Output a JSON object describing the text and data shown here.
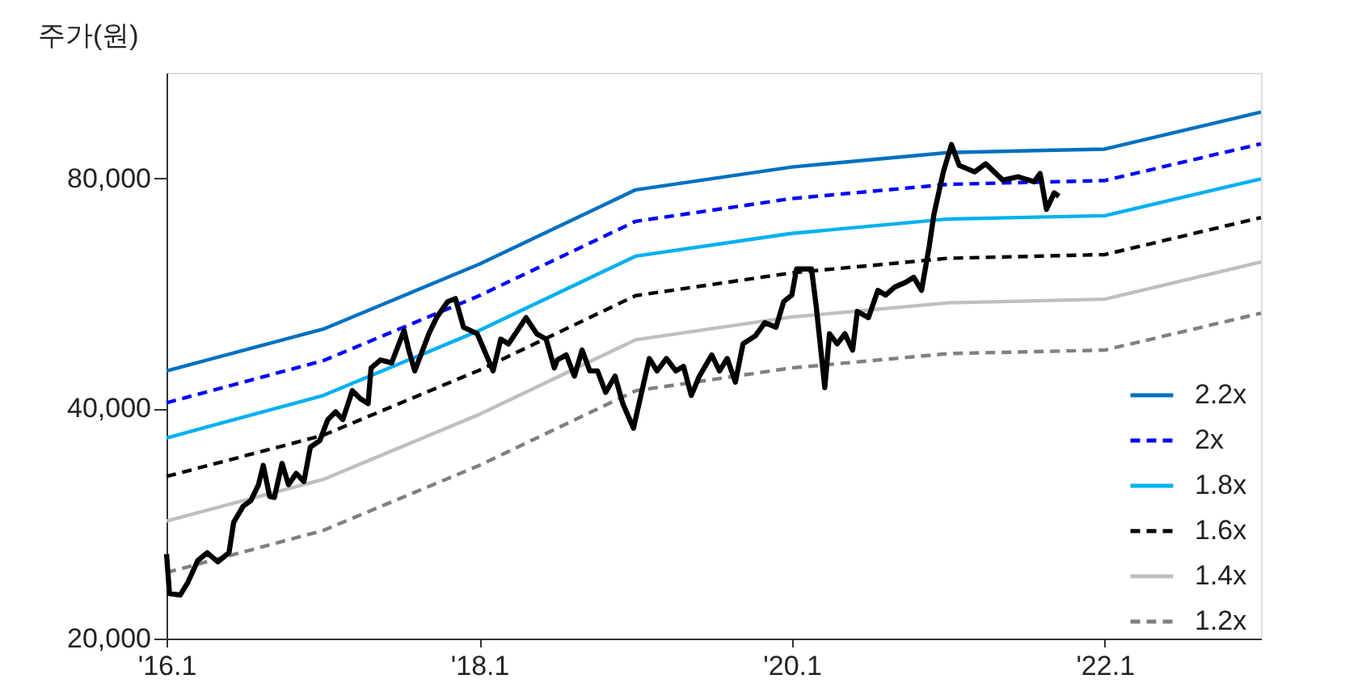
{
  "chart_data": {
    "type": "line",
    "ylabel": "주가(원)",
    "log": true,
    "grid": false,
    "legend": "bottom right",
    "marker": "none",
    "xlim": [
      "2016-01",
      "2023-01"
    ],
    "xticks": [
      {
        "value": "2016-01",
        "label": "'16.1"
      },
      {
        "value": "2018-01",
        "label": "'18.1"
      },
      {
        "value": "2020-01",
        "label": "'20.1"
      },
      {
        "value": "2022-01",
        "label": "'22.1"
      }
    ],
    "ylim": [
      20000,
      110000
    ],
    "yticks": [
      {
        "value": 20000,
        "label": "20,000"
      },
      {
        "value": 40000,
        "label": "40,000"
      },
      {
        "value": 80000,
        "label": "80,000"
      }
    ],
    "x": [
      "2016-01",
      "2017-01",
      "2018-01",
      "2019-01",
      "2020-01",
      "2021-01",
      "2022-01",
      "2023-01"
    ],
    "series": [
      {
        "name": "2.2x",
        "color": "#0070c0",
        "line_style": "solid",
        "values": [
          44800,
          50800,
          61800,
          77300,
          82800,
          86500,
          87400,
          97700
        ]
      },
      {
        "name": "2x",
        "color": "#0000ff",
        "line_style": "dashed",
        "values": [
          40700,
          46200,
          56200,
          70300,
          75300,
          78600,
          79500,
          88800
        ]
      },
      {
        "name": "1.8x",
        "color": "#00b0f0",
        "line_style": "solid",
        "values": [
          36600,
          41600,
          50600,
          63300,
          67800,
          70800,
          71500,
          79900
        ]
      },
      {
        "name": "1.6x",
        "color": "#000000",
        "line_style": "dashed",
        "values": [
          32600,
          36900,
          44900,
          56200,
          60200,
          62900,
          63600,
          71100
        ]
      },
      {
        "name": "1.4x",
        "color": "#bfbfbf",
        "line_style": "solid",
        "values": [
          28500,
          32300,
          39300,
          49200,
          52700,
          55000,
          55600,
          62200
        ]
      },
      {
        "name": "1.2x",
        "color": "#808080",
        "line_style": "dashed",
        "values": [
          24400,
          27700,
          33700,
          42200,
          45200,
          47200,
          47700,
          53300
        ]
      },
      {
        "color": "#000000",
        "line_style": "solid",
        "x": [
          "2016-01-01",
          "2016-01-08",
          "2016-02-02",
          "2016-02-20",
          "2016-03-14",
          "2016-04-05",
          "2016-04-30",
          "2016-05-26",
          "2016-06-06",
          "2016-06-28",
          "2016-07-16",
          "2016-08-03",
          "2016-08-14",
          "2016-08-29",
          "2016-09-09",
          "2016-09-27",
          "2016-10-12",
          "2016-10-30",
          "2016-11-17",
          "2016-12-02",
          "2016-12-24",
          "2017-01-12",
          "2017-01-30",
          "2017-02-16",
          "2017-03-10",
          "2017-03-29",
          "2017-04-16",
          "2017-04-23",
          "2017-05-15",
          "2017-06-10",
          "2017-07-09",
          "2017-07-20",
          "2017-08-03",
          "2017-09-05",
          "2017-09-23",
          "2017-10-19",
          "2017-11-06",
          "2017-11-25",
          "2017-12-27",
          "2018-02-02",
          "2018-02-20",
          "2018-03-10",
          "2018-04-20",
          "2018-05-15",
          "2018-06-06",
          "2018-06-25",
          "2018-07-02",
          "2018-07-23",
          "2018-08-11",
          "2018-08-29",
          "2018-09-16",
          "2018-10-04",
          "2018-10-23",
          "2018-11-14",
          "2018-12-02",
          "2018-12-27",
          "2019-01-15",
          "2019-02-02",
          "2019-02-20",
          "2019-03-14",
          "2019-04-05",
          "2019-04-23",
          "2019-05-11",
          "2019-05-30",
          "2019-06-28",
          "2019-07-16",
          "2019-08-03",
          "2019-08-22",
          "2019-09-09",
          "2019-10-08",
          "2019-10-30",
          "2019-11-25",
          "2019-12-13",
          "2020-01-01",
          "2020-01-12",
          "2020-02-02",
          "2020-02-16",
          "2020-02-27",
          "2020-03-18",
          "2020-03-29",
          "2020-04-16",
          "2020-05-04",
          "2020-05-22",
          "2020-06-02",
          "2020-06-28",
          "2020-07-20",
          "2020-08-07",
          "2020-08-29",
          "2020-09-23",
          "2020-10-12",
          "2020-10-30",
          "2020-11-17",
          "2020-11-28",
          "2020-12-20",
          "2021-01-08",
          "2021-01-26",
          "2021-03-03",
          "2021-03-29",
          "2021-05-08",
          "2021-06-13",
          "2021-07-20",
          "2021-08-03",
          "2021-08-18",
          "2021-09-05",
          "2021-09-16"
        ],
        "values": [
          25800,
          22900,
          22800,
          23700,
          25300,
          25900,
          25200,
          25900,
          28400,
          29800,
          30300,
          31800,
          33700,
          30700,
          30600,
          33900,
          31800,
          32900,
          32100,
          35600,
          36300,
          38700,
          39600,
          38700,
          42200,
          41200,
          40600,
          45200,
          46300,
          45900,
          50600,
          47700,
          44800,
          50100,
          52600,
          55200,
          55700,
          51100,
          50100,
          44800,
          49300,
          48600,
          52600,
          50100,
          49300,
          45200,
          46300,
          47000,
          44100,
          47700,
          44800,
          44800,
          42000,
          44100,
          40600,
          37700,
          42000,
          46500,
          44800,
          46500,
          44800,
          45400,
          41600,
          44100,
          47000,
          44800,
          46500,
          43300,
          48600,
          49800,
          51800,
          51100,
          55200,
          56300,
          60900,
          60900,
          60900,
          54400,
          42600,
          50100,
          48600,
          50100,
          47700,
          53600,
          52600,
          57100,
          56300,
          57700,
          58500,
          59400,
          57100,
          65200,
          71800,
          81600,
          88600,
          83200,
          81600,
          83600,
          79600,
          80400,
          79200,
          81200,
          72900,
          76600,
          75800
        ]
      }
    ]
  }
}
